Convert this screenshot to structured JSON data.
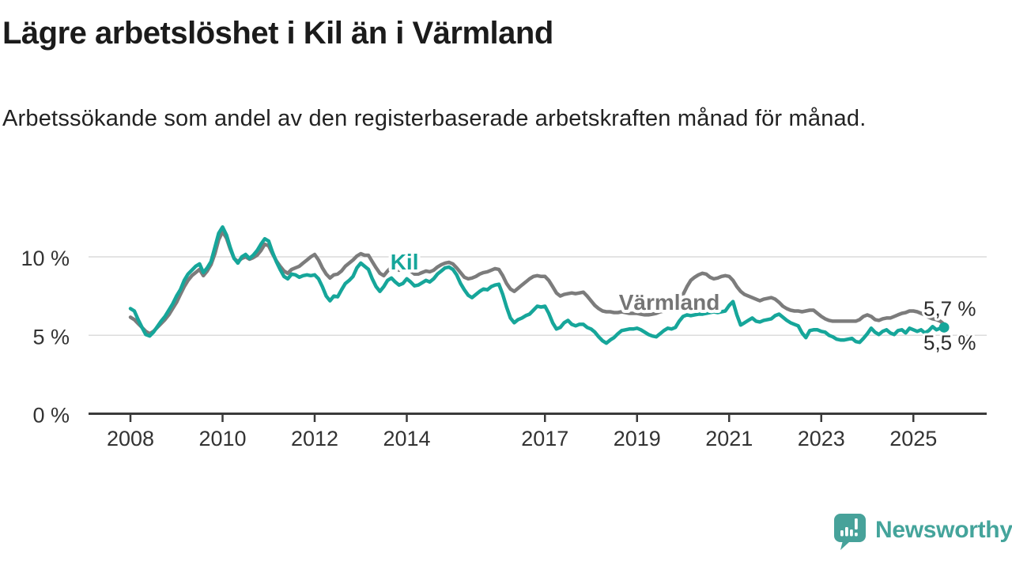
{
  "header": {
    "title": "Lägre arbetslöshet i Kil än i Värmland",
    "subtitle": "Arbetssökande som andel av den registerbaserade arbetskraften månad för månad."
  },
  "logo": {
    "text": "Newsworthy",
    "icon": "speech-bubble-bar-chart-icon",
    "color": "#47a29a"
  },
  "colors": {
    "kil_line": "#16a69a",
    "varmland_line": "#7c7c7c",
    "varmland_label": "#757575",
    "axis": "#3a3a3a",
    "grid": "#dcdcdc",
    "tick_text": "#333333",
    "end_label_text": "#2b2b2b",
    "background": "#ffffff"
  },
  "chart_data": {
    "type": "line",
    "title": "Lägre arbetslöshet i Kil än i Värmland",
    "subtitle": "Arbetssökande som andel av den registerbaserade arbetskraften månad för månad.",
    "unit": "%",
    "x_interval": "monthly",
    "x_start_year": 2008,
    "x_start_month": 1,
    "x_end_year": 2025,
    "x_end_month": 9,
    "x_ticks": [
      2008,
      2010,
      2012,
      2014,
      2017,
      2019,
      2021,
      2023,
      2025
    ],
    "y_ticks": [
      {
        "value": 0,
        "label": "0 %"
      },
      {
        "value": 5,
        "label": "5 %"
      },
      {
        "value": 10,
        "label": "10 %"
      }
    ],
    "y_range": [
      0,
      12.5
    ],
    "grid": "horizontal-only",
    "legend": "inline-labels",
    "annotations": [
      {
        "text": "Kil",
        "year": 2013.95,
        "value": 9.68,
        "color": "#16a69a"
      },
      {
        "text": "Värmland",
        "year": 2019.7,
        "value": 7.1,
        "color": "#757575"
      }
    ],
    "series": [
      {
        "name": "Värmland",
        "color": "#7c7c7c",
        "end_label": "5,7 %",
        "end_dot": false,
        "values": [
          6.15,
          6.0,
          5.75,
          5.5,
          5.25,
          5.1,
          5.25,
          5.5,
          5.75,
          6.0,
          6.3,
          6.7,
          7.1,
          7.6,
          8.1,
          8.5,
          8.8,
          9.0,
          9.2,
          8.8,
          9.1,
          9.5,
          10.2,
          11.1,
          11.6,
          11.2,
          10.5,
          9.9,
          9.7,
          9.9,
          10.0,
          9.85,
          9.95,
          10.1,
          10.4,
          10.8,
          10.7,
          10.2,
          9.75,
          9.4,
          9.1,
          8.95,
          9.2,
          9.3,
          9.4,
          9.6,
          9.8,
          10.0,
          10.15,
          9.8,
          9.3,
          8.9,
          8.65,
          8.85,
          8.9,
          9.1,
          9.4,
          9.6,
          9.8,
          10.05,
          10.2,
          10.1,
          10.1,
          9.7,
          9.3,
          8.95,
          8.8,
          9.1,
          9.35,
          9.3,
          9.15,
          9.2,
          9.3,
          9.1,
          8.9,
          8.9,
          9.0,
          9.1,
          9.05,
          9.15,
          9.35,
          9.5,
          9.6,
          9.65,
          9.55,
          9.3,
          9.0,
          8.7,
          8.6,
          8.65,
          8.75,
          8.9,
          9.0,
          9.05,
          9.15,
          9.25,
          9.2,
          8.8,
          8.3,
          7.95,
          7.8,
          8.0,
          8.2,
          8.4,
          8.6,
          8.75,
          8.8,
          8.75,
          8.75,
          8.5,
          8.1,
          7.7,
          7.5,
          7.6,
          7.65,
          7.7,
          7.65,
          7.7,
          7.75,
          7.5,
          7.2,
          6.9,
          6.7,
          6.55,
          6.5,
          6.5,
          6.45,
          6.45,
          6.5,
          6.45,
          6.4,
          6.4,
          6.4,
          6.35,
          6.3,
          6.3,
          6.35,
          6.4,
          6.5,
          6.55,
          6.6,
          6.65,
          6.7,
          7.0,
          7.6,
          8.1,
          8.5,
          8.7,
          8.85,
          8.95,
          8.9,
          8.7,
          8.6,
          8.65,
          8.75,
          8.8,
          8.75,
          8.5,
          8.1,
          7.8,
          7.6,
          7.5,
          7.4,
          7.3,
          7.2,
          7.3,
          7.35,
          7.4,
          7.3,
          7.1,
          6.85,
          6.7,
          6.6,
          6.55,
          6.55,
          6.5,
          6.55,
          6.6,
          6.6,
          6.4,
          6.2,
          6.05,
          5.95,
          5.9,
          5.9,
          5.9,
          5.9,
          5.9,
          5.9,
          5.9,
          6.0,
          6.2,
          6.3,
          6.2,
          6.0,
          5.95,
          6.05,
          6.1,
          6.1,
          6.2,
          6.3,
          6.4,
          6.45,
          6.55,
          6.55,
          6.5,
          6.4,
          6.3,
          6.15,
          6.05,
          6.0,
          5.9,
          5.7
        ]
      },
      {
        "name": "Kil",
        "color": "#16a69a",
        "end_label": "5,5 %",
        "end_dot": true,
        "values": [
          6.7,
          6.55,
          6.0,
          5.5,
          5.05,
          4.95,
          5.2,
          5.55,
          5.9,
          6.2,
          6.6,
          7.0,
          7.5,
          7.9,
          8.5,
          8.9,
          9.15,
          9.4,
          9.55,
          9.0,
          9.3,
          9.7,
          10.6,
          11.5,
          11.9,
          11.4,
          10.6,
          9.9,
          9.6,
          10.0,
          10.15,
          9.9,
          10.1,
          10.4,
          10.8,
          11.15,
          11.0,
          10.3,
          9.7,
          9.2,
          8.75,
          8.6,
          8.9,
          8.85,
          8.7,
          8.8,
          8.85,
          8.8,
          8.85,
          8.6,
          8.1,
          7.5,
          7.2,
          7.5,
          7.45,
          7.9,
          8.3,
          8.5,
          8.75,
          9.3,
          9.6,
          9.4,
          9.2,
          8.6,
          8.1,
          7.8,
          8.1,
          8.5,
          8.65,
          8.4,
          8.2,
          8.3,
          8.6,
          8.4,
          8.15,
          8.2,
          8.35,
          8.5,
          8.4,
          8.6,
          8.9,
          9.1,
          9.3,
          9.35,
          9.2,
          8.85,
          8.3,
          7.9,
          7.55,
          7.4,
          7.6,
          7.8,
          7.95,
          7.9,
          8.1,
          8.2,
          8.25,
          7.6,
          6.8,
          6.1,
          5.8,
          6.0,
          6.1,
          6.25,
          6.35,
          6.6,
          6.85,
          6.8,
          6.85,
          6.4,
          5.8,
          5.4,
          5.5,
          5.8,
          5.95,
          5.7,
          5.6,
          5.7,
          5.7,
          5.5,
          5.4,
          5.2,
          4.9,
          4.65,
          4.5,
          4.7,
          4.85,
          5.1,
          5.3,
          5.35,
          5.4,
          5.4,
          5.45,
          5.35,
          5.2,
          5.05,
          4.95,
          4.9,
          5.1,
          5.3,
          5.45,
          5.4,
          5.5,
          5.9,
          6.2,
          6.3,
          6.25,
          6.3,
          6.35,
          6.35,
          6.4,
          6.45,
          6.5,
          6.45,
          6.5,
          6.55,
          6.9,
          7.15,
          6.3,
          5.65,
          5.8,
          5.95,
          6.1,
          5.9,
          5.85,
          5.95,
          6.0,
          6.05,
          6.25,
          6.35,
          6.15,
          5.95,
          5.8,
          5.7,
          5.6,
          5.15,
          4.85,
          5.3,
          5.35,
          5.35,
          5.25,
          5.2,
          5.0,
          4.9,
          4.75,
          4.7,
          4.7,
          4.75,
          4.8,
          4.6,
          4.55,
          4.8,
          5.1,
          5.45,
          5.2,
          5.05,
          5.25,
          5.35,
          5.15,
          5.05,
          5.3,
          5.35,
          5.15,
          5.45,
          5.35,
          5.25,
          5.35,
          5.15,
          5.3,
          5.55,
          5.35,
          5.45,
          5.5
        ]
      }
    ]
  }
}
